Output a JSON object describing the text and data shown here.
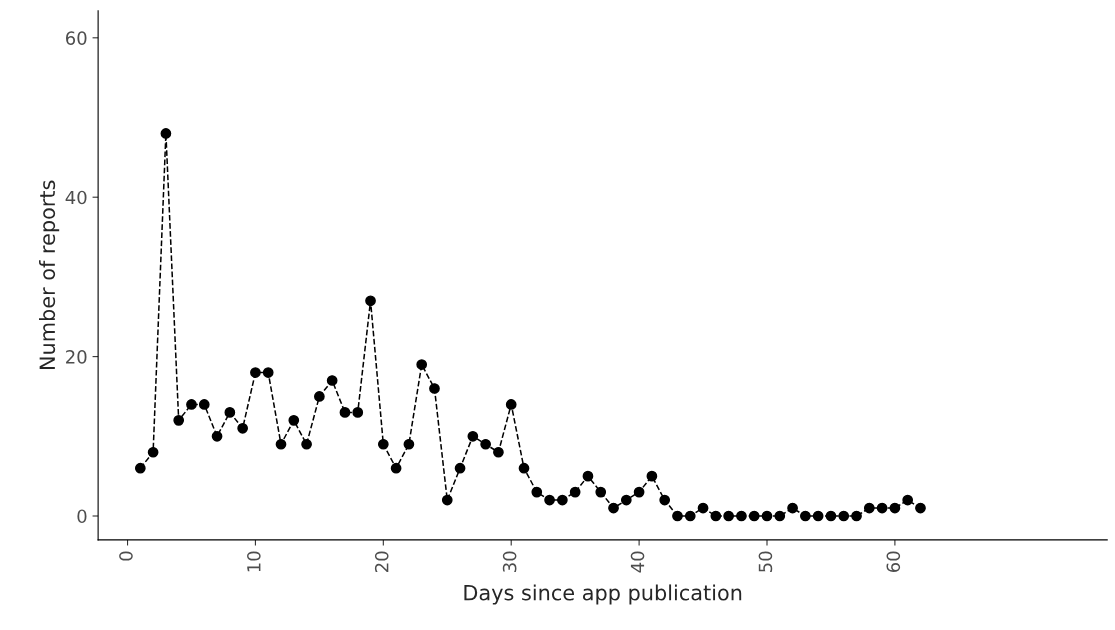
{
  "chart_data": {
    "type": "line",
    "xlabel": "Days since app publication",
    "ylabel": "Number of reports",
    "x": [
      1,
      2,
      3,
      4,
      5,
      6,
      7,
      8,
      9,
      10,
      11,
      12,
      13,
      14,
      15,
      16,
      17,
      18,
      19,
      20,
      21,
      22,
      23,
      24,
      25,
      26,
      27,
      28,
      29,
      30,
      31,
      32,
      33,
      34,
      35,
      36,
      37,
      38,
      39,
      40,
      41,
      42,
      43,
      44,
      45,
      46,
      47,
      48,
      49,
      50,
      51,
      52,
      53,
      54,
      55,
      56,
      57,
      58,
      59,
      60,
      61,
      62
    ],
    "series": [
      {
        "color": "#000000",
        "values": [
          6,
          8,
          48,
          12,
          14,
          14,
          10,
          13,
          11,
          18,
          18,
          9,
          12,
          9,
          15,
          17,
          13,
          13,
          27,
          9,
          6,
          9,
          19,
          16,
          2,
          6,
          10,
          9,
          8,
          14,
          6,
          3,
          2,
          2,
          3,
          5,
          3,
          1,
          2,
          3,
          5,
          2,
          0,
          0,
          1,
          0,
          0,
          0,
          0,
          0,
          0,
          1,
          0,
          0,
          0,
          0,
          0,
          1,
          1,
          1,
          2,
          1
        ]
      }
    ],
    "marker": "circle",
    "line_style": "dashed",
    "grid": false,
    "legend": false,
    "xlim": [
      -2.3,
      76.6
    ],
    "ylim": [
      -3,
      63.4
    ],
    "xticks": [
      0,
      10,
      20,
      30,
      40,
      50,
      60
    ],
    "yticks": [
      0,
      20,
      40,
      60
    ]
  }
}
